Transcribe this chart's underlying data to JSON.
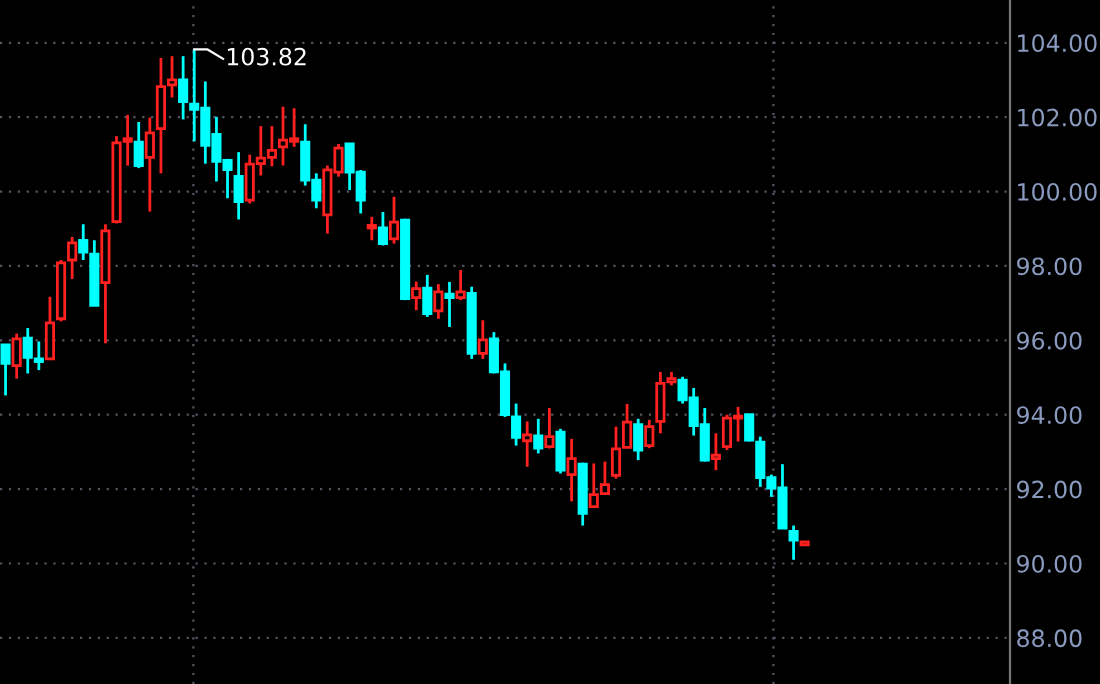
{
  "chart_data": {
    "type": "candlestick",
    "categories": [
      null,
      null,
      null,
      null,
      null,
      null,
      null,
      null,
      null,
      null,
      null,
      null,
      null,
      null,
      null,
      null,
      null,
      null,
      null,
      null,
      null,
      null,
      null,
      null,
      null,
      null,
      null,
      null,
      null,
      null,
      null,
      null,
      null,
      null,
      null,
      null,
      null,
      null,
      null,
      null,
      null,
      null,
      null,
      null,
      null,
      null,
      null,
      null,
      null,
      null,
      null,
      null,
      null,
      null,
      null,
      null,
      null,
      null,
      null,
      null,
      null,
      null,
      null,
      null,
      null,
      null,
      null,
      null,
      null,
      null,
      null,
      null,
      null,
      null,
      null,
      null,
      null,
      null,
      null,
      null,
      null,
      null,
      null,
      null,
      null,
      null,
      null,
      null,
      null,
      null,
      null
    ],
    "ohlc": [
      [
        95.88,
        95.88,
        94.52,
        95.38
      ],
      [
        95.32,
        96.18,
        94.97,
        96.04
      ],
      [
        96.06,
        96.33,
        95.11,
        95.54
      ],
      [
        95.5,
        95.97,
        95.2,
        95.43
      ],
      [
        95.5,
        97.17,
        95.5,
        96.47
      ],
      [
        96.58,
        98.16,
        96.51,
        98.08
      ],
      [
        98.16,
        98.78,
        97.65,
        98.62
      ],
      [
        98.69,
        99.12,
        98.16,
        98.37
      ],
      [
        98.32,
        98.69,
        96.94,
        96.94
      ],
      [
        97.55,
        99.12,
        95.92,
        98.94
      ],
      [
        99.19,
        101.49,
        99.14,
        101.31
      ],
      [
        101.35,
        102.06,
        100.7,
        101.42
      ],
      [
        101.33,
        101.87,
        100.63,
        100.7
      ],
      [
        100.92,
        101.99,
        99.46,
        101.58
      ],
      [
        101.69,
        103.59,
        100.49,
        102.82
      ],
      [
        102.87,
        103.64,
        102.53,
        103.0
      ],
      [
        103.0,
        103.64,
        101.94,
        102.42
      ],
      [
        102.35,
        103.82,
        101.35,
        102.21
      ],
      [
        102.24,
        102.96,
        100.75,
        101.24
      ],
      [
        101.54,
        102.01,
        100.27,
        100.81
      ],
      [
        100.84,
        100.88,
        99.82,
        100.59
      ],
      [
        100.41,
        101.06,
        99.25,
        99.73
      ],
      [
        99.77,
        100.99,
        99.68,
        100.74
      ],
      [
        100.75,
        101.76,
        100.43,
        100.9
      ],
      [
        100.92,
        101.76,
        100.68,
        101.11
      ],
      [
        101.2,
        102.28,
        100.7,
        101.38
      ],
      [
        101.35,
        102.24,
        101.2,
        101.42
      ],
      [
        101.33,
        101.81,
        100.16,
        100.31
      ],
      [
        100.31,
        100.49,
        99.55,
        99.77
      ],
      [
        99.37,
        100.7,
        98.87,
        100.58
      ],
      [
        100.52,
        101.28,
        100.4,
        101.17
      ],
      [
        101.28,
        101.28,
        100.04,
        100.52
      ],
      [
        100.52,
        100.58,
        99.41,
        99.77
      ],
      [
        99.02,
        99.32,
        98.69,
        99.09
      ],
      [
        99.02,
        99.45,
        98.55,
        98.6
      ],
      [
        98.73,
        99.86,
        98.6,
        99.18
      ],
      [
        99.23,
        99.27,
        97.08,
        97.12
      ],
      [
        97.15,
        97.58,
        96.81,
        97.39
      ],
      [
        97.4,
        97.76,
        96.63,
        96.72
      ],
      [
        96.79,
        97.51,
        96.58,
        97.3
      ],
      [
        97.24,
        97.57,
        96.36,
        97.15
      ],
      [
        97.15,
        97.89,
        97.08,
        97.3
      ],
      [
        97.26,
        97.44,
        95.5,
        95.65
      ],
      [
        95.65,
        96.54,
        95.5,
        96.01
      ],
      [
        96.04,
        96.22,
        95.11,
        95.15
      ],
      [
        95.15,
        95.38,
        93.94,
        94.0
      ],
      [
        93.94,
        94.3,
        93.17,
        93.39
      ],
      [
        93.3,
        93.82,
        92.6,
        93.46
      ],
      [
        93.43,
        93.89,
        92.96,
        93.1
      ],
      [
        93.14,
        94.18,
        93.09,
        93.41
      ],
      [
        93.53,
        93.62,
        92.42,
        92.51
      ],
      [
        92.39,
        93.35,
        91.67,
        92.82
      ],
      [
        92.67,
        92.71,
        91.02,
        91.35
      ],
      [
        91.53,
        92.69,
        91.49,
        91.85
      ],
      [
        91.88,
        92.74,
        91.85,
        92.12
      ],
      [
        92.37,
        93.68,
        92.28,
        93.08
      ],
      [
        93.12,
        94.29,
        93.1,
        93.8
      ],
      [
        93.73,
        93.89,
        92.78,
        93.05
      ],
      [
        93.17,
        93.86,
        93.1,
        93.68
      ],
      [
        93.82,
        95.15,
        93.5,
        94.84
      ],
      [
        94.88,
        95.15,
        94.79,
        94.97
      ],
      [
        94.93,
        95.02,
        94.3,
        94.4
      ],
      [
        94.45,
        94.72,
        93.44,
        93.71
      ],
      [
        93.73,
        94.18,
        92.74,
        92.78
      ],
      [
        92.82,
        93.5,
        92.51,
        92.91
      ],
      [
        93.14,
        94.0,
        93.05,
        93.91
      ],
      [
        93.91,
        94.21,
        93.28,
        93.96
      ],
      [
        94.0,
        94.0,
        93.28,
        93.32
      ],
      [
        93.26,
        93.41,
        92.06,
        92.31
      ],
      [
        92.31,
        92.39,
        91.79,
        92.03
      ],
      [
        92.03,
        92.67,
        90.95,
        90.95
      ],
      [
        90.86,
        91.02,
        90.1,
        90.63
      ],
      [
        90.5,
        90.6,
        90.49,
        90.58
      ],
      null,
      null,
      null,
      null,
      null,
      null,
      null,
      null,
      null,
      null,
      null,
      null,
      null,
      null,
      null,
      null,
      null,
      null
    ],
    "colors": [
      "#00ffff",
      "#ff2020",
      "#00ffff",
      "#00ffff",
      "#ff2020",
      "#ff2020",
      "#ff2020",
      "#00ffff",
      "#00ffff",
      "#ff2020",
      "#ff2020",
      "#ff2020",
      "#00ffff",
      "#ff2020",
      "#ff2020",
      "#ff2020",
      "#00ffff",
      "#00ffff",
      "#00ffff",
      "#00ffff",
      "#00ffff",
      "#00ffff",
      "#ff2020",
      "#ff2020",
      "#ff2020",
      "#ff2020",
      "#ff2020",
      "#00ffff",
      "#00ffff",
      "#ff2020",
      "#ff2020",
      "#00ffff",
      "#00ffff",
      "#ff2020",
      "#00ffff",
      "#ff2020",
      "#00ffff",
      "#ff2020",
      "#00ffff",
      "#ff2020",
      "#00ffff",
      "#ff2020",
      "#00ffff",
      "#ff2020",
      "#00ffff",
      "#00ffff",
      "#00ffff",
      "#ff2020",
      "#00ffff",
      "#ff2020",
      "#00ffff",
      "#ff2020",
      "#00ffff",
      "#ff2020",
      "#ff2020",
      "#ff2020",
      "#ff2020",
      "#00ffff",
      "#ff2020",
      "#ff2020",
      "#ff2020",
      "#00ffff",
      "#00ffff",
      "#00ffff",
      "#ff2020",
      "#ff2020",
      "#ff2020",
      "#00ffff",
      "#00ffff",
      "#00ffff",
      "#00ffff",
      "#00ffff",
      "#ff2020",
      null,
      null,
      null,
      null,
      null,
      null,
      null,
      null,
      null,
      null,
      null,
      null,
      null,
      null,
      null,
      null,
      null,
      null
    ],
    "ylim": [
      86.76,
      105.15
    ],
    "yticks": [
      {
        "value": 88,
        "label": "88.00"
      },
      {
        "value": 90,
        "label": "90.00"
      },
      {
        "value": 92,
        "label": "92.00"
      },
      {
        "value": 94,
        "label": "94.00"
      },
      {
        "value": 96,
        "label": "96.00"
      },
      {
        "value": 98,
        "label": "98.00"
      },
      {
        "value": 100,
        "label": "100.00"
      },
      {
        "value": 102,
        "label": "102.00"
      },
      {
        "value": 104,
        "label": "104.00"
      }
    ],
    "grid": "y",
    "annotations": [
      "103.82"
    ]
  }
}
